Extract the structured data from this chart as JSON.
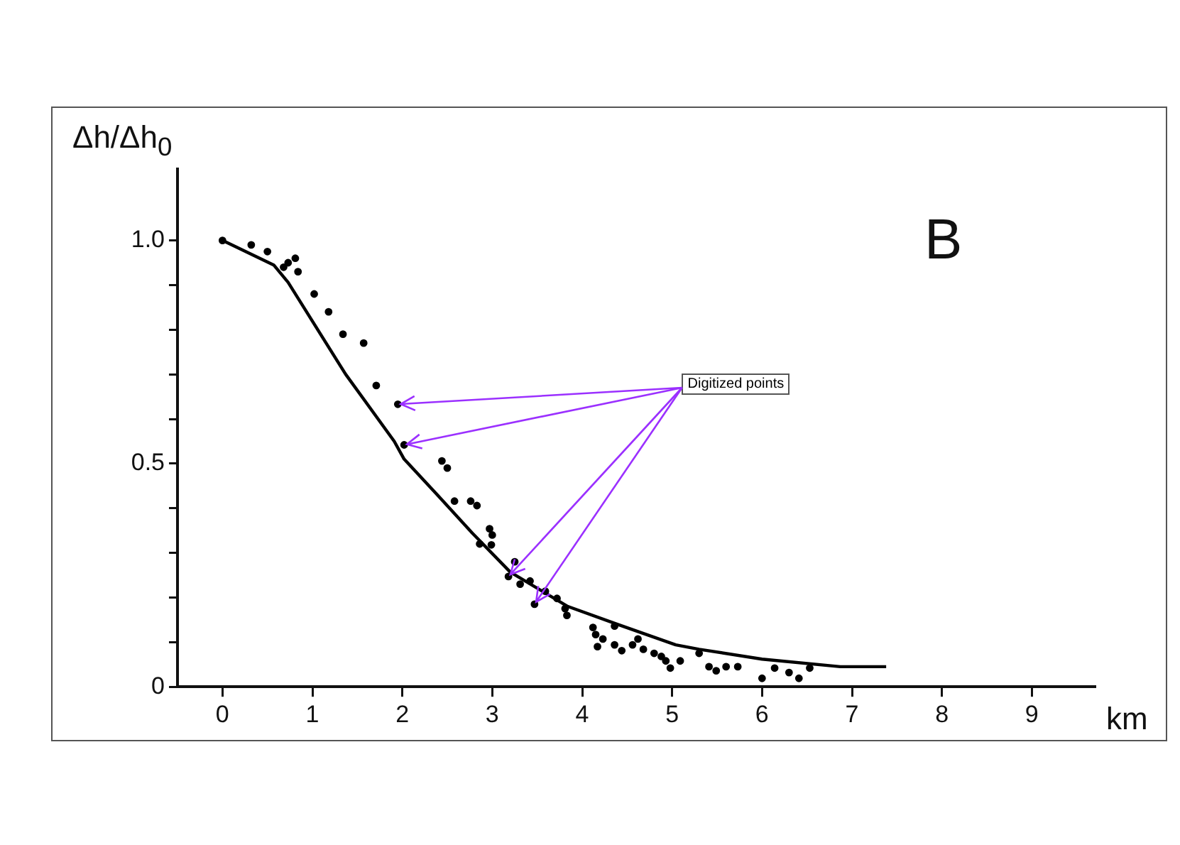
{
  "chart_data": {
    "type": "scatter",
    "xlabel": "km",
    "ylabel": "Δh/Δh$_{0}$",
    "annotations": [
      "B",
      {
        "text": "Digitized points",
        "x": 1.95,
        "y": 0.633
      }
    ],
    "xlim": [
      -0.5,
      9.7
    ],
    "ylim": [
      0,
      1.16
    ],
    "xticks": [
      0,
      1,
      2,
      3,
      4,
      5,
      6,
      7,
      8,
      9
    ],
    "yticks": [
      0,
      {
        "value": 0.1,
        "label": null
      },
      {
        "value": 0.2,
        "label": null
      },
      {
        "value": 0.3,
        "label": null
      },
      {
        "value": 0.4,
        "label": null
      },
      {
        "value": 0.5,
        "label": "0.5"
      },
      {
        "value": 0.6,
        "label": null
      },
      {
        "value": 0.7,
        "label": null
      },
      {
        "value": 0.8,
        "label": null
      },
      {
        "value": 0.9,
        "label": null
      },
      {
        "value": 1,
        "label": "1.0"
      }
    ],
    "grid": false,
    "legend": false,
    "series": [
      {
        "type": "line",
        "color": "#000000",
        "marker": "none",
        "line_style": "solid",
        "x": [
          0,
          0.57,
          0.73,
          1.37,
          1.91,
          2.02,
          2.39,
          2.78,
          3.2,
          3.84,
          4.39,
          5.04,
          5.3,
          6.0,
          6.87,
          7.38
        ],
        "values": [
          1.0,
          0.945,
          0.906,
          0.7,
          0.55,
          0.51,
          0.43,
          0.344,
          0.257,
          0.18,
          0.14,
          0.094,
          0.084,
          0.062,
          0.045,
          0.045
        ]
      },
      {
        "type": "scatter",
        "color": "#000000",
        "marker": "circle",
        "x": [
          0,
          0.32,
          0.5,
          0.68,
          0.73,
          0.81,
          0.84,
          1.02,
          1.18,
          1.34,
          1.57,
          1.71,
          1.95,
          2.02,
          2.44,
          2.5,
          2.58,
          2.76,
          2.83,
          2.97,
          3.0,
          2.86,
          2.99,
          3.25,
          3.18,
          3.31,
          3.42,
          3.47,
          3.59,
          3.72,
          3.81,
          3.83,
          4.12,
          4.15,
          4.17,
          4.23,
          4.36,
          4.36,
          4.44,
          4.56,
          4.62,
          4.68,
          4.8,
          4.93,
          4.98,
          4.88,
          5.09,
          5.3,
          5.41,
          5.49,
          5.6,
          5.73,
          6.0,
          6.14,
          6.3,
          6.41,
          6.53
        ],
        "values": [
          1.0,
          0.99,
          0.975,
          0.94,
          0.95,
          0.96,
          0.93,
          0.88,
          0.84,
          0.79,
          0.77,
          0.675,
          0.633,
          0.542,
          0.506,
          0.49,
          0.416,
          0.416,
          0.406,
          0.354,
          0.34,
          0.32,
          0.318,
          0.28,
          0.247,
          0.23,
          0.237,
          0.185,
          0.214,
          0.198,
          0.175,
          0.16,
          0.133,
          0.117,
          0.09,
          0.107,
          0.136,
          0.094,
          0.081,
          0.094,
          0.107,
          0.084,
          0.075,
          0.058,
          0.042,
          0.068,
          0.058,
          0.075,
          0.045,
          0.036,
          0.045,
          0.045,
          0.019,
          0.042,
          0.032,
          0.019,
          0.042
        ]
      }
    ]
  }
}
